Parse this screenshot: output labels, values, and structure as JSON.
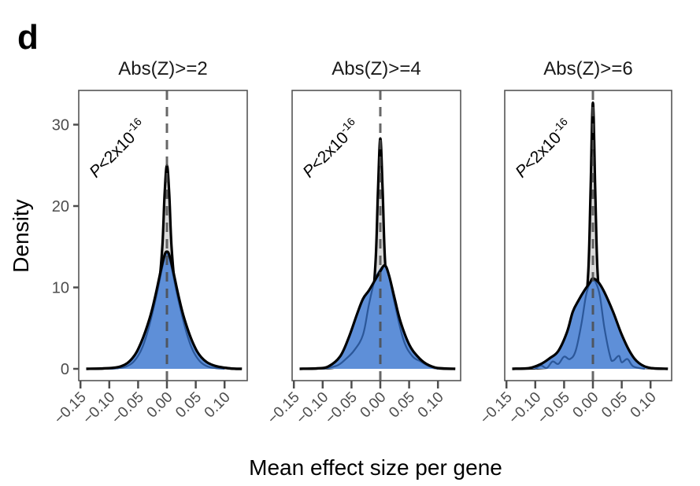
{
  "panel_letter": "d",
  "chart_data": {
    "type": "area",
    "title": "",
    "xlabel": "Mean effect size per gene",
    "ylabel": "Density",
    "xlim": [
      -0.155,
      0.135
    ],
    "ylim": [
      -1.2,
      34
    ],
    "xticks": [
      -0.15,
      -0.1,
      -0.05,
      0.0,
      0.05,
      0.1
    ],
    "xtick_labels": [
      "−0.15",
      "−0.10",
      "−0.05",
      "0.00",
      "0.05",
      "0.10"
    ],
    "yticks": [
      0,
      10,
      20,
      30
    ],
    "ytick_labels": [
      "0",
      "10",
      "20",
      "30"
    ],
    "reference_line_x": 0.0,
    "grid": false,
    "colors": {
      "background_density_fill": "#d9d9d9",
      "hits_density_fill": "#5e8fd8",
      "inner_line": "#2b5799",
      "outline": "#000000",
      "reference_line": "#4d4d4d",
      "frame": "#555555"
    },
    "panels": [
      {
        "strip_label": "Abs(Z)>=2",
        "annotation": {
          "prefix": "P",
          "text": "<2x10",
          "superscript": "-16"
        },
        "series": [
          {
            "name": "background",
            "x": [
              -0.14,
              -0.11,
              -0.08,
              -0.06,
              -0.04,
              -0.025,
              -0.015,
              -0.008,
              -0.004,
              0,
              0.004,
              0.008,
              0.015,
              0.025,
              0.04,
              0.06,
              0.08,
              0.11,
              0.13
            ],
            "y": [
              0,
              0.05,
              0.2,
              0.9,
              2.6,
              5.5,
              9.5,
              15.0,
              21.5,
              25.0,
              21.5,
              15.0,
              9.5,
              5.5,
              2.6,
              1.1,
              0.35,
              0.05,
              0
            ]
          },
          {
            "name": "hits",
            "x": [
              -0.14,
              -0.11,
              -0.08,
              -0.06,
              -0.045,
              -0.03,
              -0.02,
              -0.01,
              -0.004,
              0,
              0.004,
              0.01,
              0.02,
              0.03,
              0.045,
              0.06,
              0.08,
              0.11,
              0.13
            ],
            "y": [
              0,
              0.05,
              0.3,
              1.3,
              3.2,
              6.2,
              9.0,
              12.3,
              14.0,
              14.4,
              14.0,
              12.3,
              9.0,
              6.2,
              3.2,
              1.4,
              0.45,
              0.05,
              0
            ]
          },
          {
            "name": "inner",
            "x": [
              -0.1,
              -0.07,
              -0.05,
              -0.035,
              -0.02,
              -0.01,
              -0.004,
              0,
              0.004,
              0.01,
              0.02,
              0.035,
              0.05,
              0.07,
              0.1
            ],
            "y": [
              0,
              0.3,
              1.6,
              4.2,
              8.4,
              11.8,
              13.7,
              14.2,
              13.7,
              11.8,
              8.4,
              4.2,
              1.6,
              0.3,
              0
            ]
          }
        ]
      },
      {
        "strip_label": "Abs(Z)>=4",
        "annotation": {
          "prefix": "P",
          "text": "<2x10",
          "superscript": "-16"
        },
        "series": [
          {
            "name": "background",
            "x": [
              -0.14,
              -0.11,
              -0.08,
              -0.06,
              -0.04,
              -0.025,
              -0.015,
              -0.008,
              -0.004,
              0,
              0.004,
              0.008,
              0.015,
              0.025,
              0.04,
              0.06,
              0.08,
              0.11,
              0.13
            ],
            "y": [
              0,
              0.05,
              0.15,
              0.6,
              1.8,
              4.0,
              7.5,
              13.5,
              22.0,
              28.3,
              22.0,
              13.5,
              7.5,
              4.0,
              1.8,
              0.7,
              0.25,
              0.05,
              0
            ]
          },
          {
            "name": "hits",
            "x": [
              -0.14,
              -0.11,
              -0.09,
              -0.07,
              -0.055,
              -0.04,
              -0.03,
              -0.02,
              -0.01,
              0,
              0.008,
              0.015,
              0.025,
              0.035,
              0.05,
              0.065,
              0.08,
              0.1,
              0.13
            ],
            "y": [
              0,
              0.05,
              0.3,
              1.5,
              3.8,
              6.8,
              8.6,
              9.6,
              10.8,
              12.0,
              12.7,
              11.5,
              8.6,
              5.8,
              3.0,
              1.5,
              0.6,
              0.08,
              0
            ]
          },
          {
            "name": "inner",
            "x": [
              -0.1,
              -0.075,
              -0.06,
              -0.045,
              -0.03,
              -0.02,
              -0.01,
              0,
              0.008,
              0.015,
              0.025,
              0.04,
              0.055,
              0.07,
              0.085,
              0.1
            ],
            "y": [
              0,
              0.4,
              1.2,
              2.3,
              4.2,
              7.8,
              10.8,
              12.2,
              12.6,
              11.4,
              8.0,
              3.6,
              1.6,
              0.9,
              0.3,
              0
            ]
          }
        ]
      },
      {
        "strip_label": "Abs(Z)>=6",
        "annotation": {
          "prefix": "P",
          "text": "<2x10",
          "superscript": "-16"
        },
        "series": [
          {
            "name": "background",
            "x": [
              -0.14,
              -0.11,
              -0.08,
              -0.06,
              -0.04,
              -0.025,
              -0.015,
              -0.008,
              -0.004,
              0,
              0.004,
              0.008,
              0.015,
              0.025,
              0.04,
              0.06,
              0.08,
              0.11,
              0.13
            ],
            "y": [
              0,
              0.05,
              0.15,
              0.5,
              1.5,
              3.5,
              6.8,
              12.0,
              22.0,
              32.7,
              22.0,
              12.0,
              6.8,
              3.5,
              1.5,
              0.6,
              0.2,
              0.05,
              0
            ]
          },
          {
            "name": "hits",
            "x": [
              -0.14,
              -0.11,
              -0.09,
              -0.075,
              -0.06,
              -0.045,
              -0.035,
              -0.025,
              -0.015,
              -0.005,
              0,
              0.01,
              0.02,
              0.035,
              0.05,
              0.065,
              0.08,
              0.1,
              0.13
            ],
            "y": [
              0,
              0.1,
              0.6,
              1.3,
              2.2,
              4.5,
              7.0,
              8.4,
              9.6,
              10.6,
              11.1,
              10.6,
              9.4,
              7.0,
              4.2,
              2.0,
              0.7,
              0.1,
              0
            ]
          },
          {
            "name": "inner",
            "x": [
              -0.1,
              -0.09,
              -0.08,
              -0.07,
              -0.06,
              -0.05,
              -0.04,
              -0.03,
              -0.02,
              -0.012,
              -0.005,
              0,
              0.005,
              0.012,
              0.02,
              0.03,
              0.035,
              0.045,
              0.05,
              0.06,
              0.07,
              0.09
            ],
            "y": [
              0,
              0.4,
              0.1,
              0.9,
              0.6,
              1.5,
              1.2,
              2.2,
              5.5,
              9.0,
              10.6,
              11.0,
              10.6,
              9.0,
              5.0,
              1.5,
              1.0,
              1.6,
              0.8,
              1.2,
              0.3,
              0
            ]
          }
        ]
      }
    ]
  }
}
